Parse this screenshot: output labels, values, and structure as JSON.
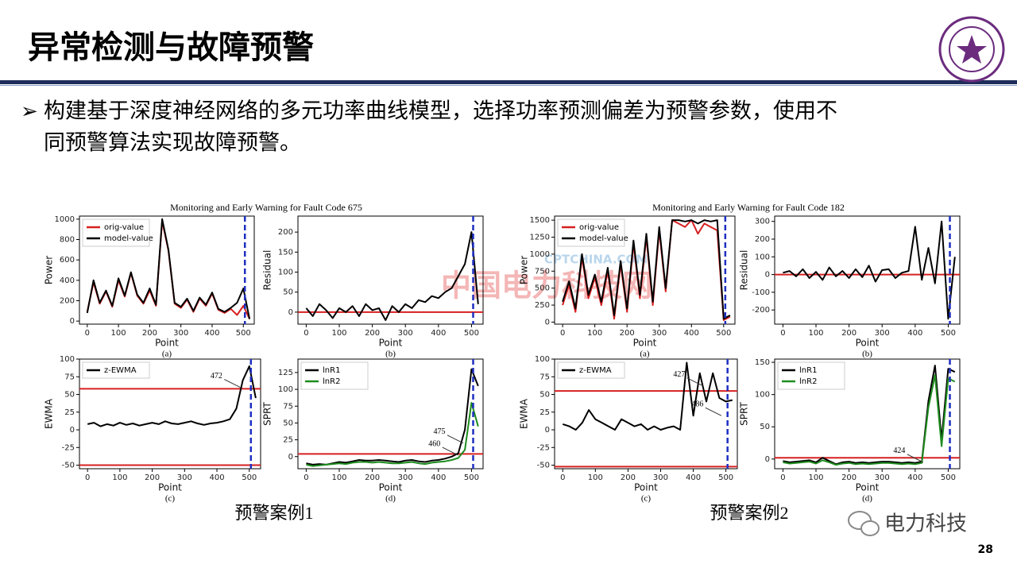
{
  "title": "异常检测与故障预警",
  "bullet": {
    "lines": [
      "构建基于深度神经网络的多元功率曲线模型，选择功率预测偏差为预警参数，使用不",
      "同预警算法实现故障预警。"
    ]
  },
  "figures": [
    {
      "title": "Monitoring and Early Warning for Fault Code 675",
      "caption": "预警案例1"
    },
    {
      "title": "Monitoring and Early Warning for Fault Code 182",
      "caption": "预警案例2"
    }
  ],
  "watermark": {
    "site": "CPTCHINA.COM",
    "name": "中国电力科技网"
  },
  "brand": "电力科技",
  "page_number": "28",
  "chart_data": [
    {
      "type": "line",
      "xlabel": "Point",
      "ylabel": "Power",
      "sublabel": "(a)",
      "legend": "upper left",
      "x": [
        0,
        20,
        40,
        60,
        80,
        100,
        120,
        140,
        160,
        180,
        200,
        220,
        240,
        260,
        280,
        300,
        320,
        340,
        360,
        380,
        400,
        420,
        440,
        460,
        480,
        500,
        520
      ],
      "xlim": [
        -25,
        535
      ],
      "ylim": [
        -30,
        1030
      ],
      "xticks": [
        0,
        100,
        200,
        300,
        400,
        500
      ],
      "yticks": [
        0,
        200,
        400,
        600,
        800,
        1000
      ],
      "alarm_x": 505,
      "thresholds": [],
      "series": [
        {
          "name": "orig-value",
          "color": "#d62020",
          "values": [
            90,
            380,
            170,
            290,
            140,
            400,
            240,
            470,
            250,
            170,
            300,
            150,
            980,
            690,
            170,
            130,
            210,
            90,
            220,
            150,
            270,
            110,
            80,
            120,
            60,
            150,
            20
          ]
        },
        {
          "name": "model-value",
          "color": "#000000",
          "values": [
            80,
            400,
            180,
            300,
            150,
            420,
            250,
            480,
            260,
            180,
            320,
            160,
            1000,
            700,
            180,
            140,
            220,
            100,
            230,
            160,
            280,
            120,
            90,
            130,
            180,
            320,
            20
          ]
        }
      ]
    },
    {
      "type": "line",
      "xlabel": "Point",
      "ylabel": "Residual",
      "sublabel": "(b)",
      "x": [
        0,
        20,
        40,
        60,
        80,
        100,
        120,
        140,
        160,
        180,
        200,
        220,
        240,
        260,
        280,
        300,
        320,
        340,
        360,
        380,
        400,
        420,
        440,
        460,
        480,
        500,
        520
      ],
      "xlim": [
        -25,
        535
      ],
      "ylim": [
        -30,
        240
      ],
      "xticks": [
        0,
        100,
        200,
        300,
        400,
        500
      ],
      "yticks": [
        0,
        50,
        100,
        150,
        200
      ],
      "alarm_x": 505,
      "thresholds": [
        0
      ],
      "series": [
        {
          "color": "#000000",
          "values": [
            10,
            -10,
            20,
            5,
            -15,
            10,
            0,
            15,
            -10,
            20,
            5,
            10,
            -20,
            15,
            0,
            20,
            10,
            30,
            25,
            40,
            35,
            50,
            60,
            90,
            120,
            200,
            20
          ]
        }
      ]
    },
    {
      "type": "line",
      "xlabel": "Point",
      "ylabel": "EWMA",
      "sublabel": "(c)",
      "legend": "upper left",
      "x": [
        0,
        20,
        40,
        60,
        80,
        100,
        120,
        140,
        160,
        180,
        200,
        220,
        240,
        260,
        280,
        300,
        320,
        340,
        360,
        380,
        400,
        420,
        440,
        460,
        480,
        500,
        520
      ],
      "xlim": [
        -25,
        535
      ],
      "ylim": [
        -55,
        100
      ],
      "xticks": [
        0,
        100,
        200,
        300,
        400,
        500
      ],
      "yticks": [
        -50,
        -25,
        0,
        25,
        50,
        75,
        100
      ],
      "alarm_x": 505,
      "thresholds": [
        58,
        -50
      ],
      "annotations": [
        {
          "label": "472",
          "x": 472,
          "y": 60
        }
      ],
      "series": [
        {
          "name": "z-EWMA",
          "color": "#000000",
          "values": [
            8,
            10,
            5,
            8,
            6,
            10,
            7,
            9,
            6,
            8,
            10,
            8,
            12,
            9,
            8,
            10,
            12,
            9,
            7,
            9,
            10,
            12,
            15,
            30,
            70,
            90,
            45
          ]
        }
      ]
    },
    {
      "type": "line",
      "xlabel": "Point",
      "ylabel": "SPRT",
      "sublabel": "(d)",
      "legend": "upper left",
      "x": [
        0,
        20,
        40,
        60,
        80,
        100,
        120,
        140,
        160,
        180,
        200,
        220,
        240,
        260,
        280,
        300,
        320,
        340,
        360,
        380,
        400,
        420,
        440,
        460,
        480,
        500,
        520
      ],
      "xlim": [
        -25,
        535
      ],
      "ylim": [
        -18,
        145
      ],
      "xticks": [
        0,
        100,
        200,
        300,
        400,
        500
      ],
      "yticks": [
        0,
        25,
        50,
        75,
        100,
        125
      ],
      "alarm_x": 505,
      "thresholds": [
        4
      ],
      "annotations": [
        {
          "label": "460",
          "x": 460,
          "y": 2
        },
        {
          "label": "475",
          "x": 475,
          "y": 20
        }
      ],
      "series": [
        {
          "name": "lnR1",
          "color": "#000000",
          "values": [
            -10,
            -12,
            -11,
            -12,
            -10,
            -8,
            -9,
            -7,
            -5,
            -6,
            -6,
            -5,
            -6,
            -7,
            -8,
            -6,
            -5,
            -7,
            -8,
            -6,
            -5,
            -3,
            0,
            5,
            40,
            130,
            105
          ]
        },
        {
          "name": "lnR2",
          "color": "#1e8c1e",
          "values": [
            -12,
            -14,
            -13,
            -12,
            -11,
            -10,
            -11,
            -9,
            -8,
            -8,
            -9,
            -8,
            -9,
            -10,
            -10,
            -9,
            -8,
            -10,
            -11,
            -9,
            -8,
            -7,
            -5,
            -2,
            10,
            80,
            45
          ]
        }
      ]
    },
    {
      "type": "line",
      "xlabel": "Point",
      "ylabel": "Power",
      "sublabel": "(a)",
      "legend": "upper left",
      "x": [
        0,
        20,
        40,
        60,
        80,
        100,
        120,
        140,
        160,
        180,
        200,
        220,
        240,
        260,
        280,
        300,
        320,
        340,
        360,
        380,
        400,
        420,
        440,
        460,
        480,
        500,
        520
      ],
      "xlim": [
        -25,
        535
      ],
      "ylim": [
        -30,
        1560
      ],
      "xticks": [
        0,
        100,
        200,
        300,
        400,
        500
      ],
      "yticks": [
        0,
        250,
        500,
        750,
        1000,
        1250,
        1500
      ],
      "alarm_x": 505,
      "thresholds": [],
      "series": [
        {
          "name": "orig-value",
          "color": "#d62020",
          "values": [
            250,
            550,
            150,
            950,
            350,
            650,
            250,
            750,
            50,
            850,
            150,
            1150,
            350,
            1250,
            250,
            1350,
            450,
            1500,
            1450,
            1400,
            1500,
            1300,
            1450,
            1400,
            1350,
            30,
            80
          ]
        },
        {
          "name": "model-value",
          "color": "#000000",
          "values": [
            300,
            600,
            200,
            1000,
            400,
            700,
            300,
            800,
            100,
            900,
            200,
            1200,
            400,
            1300,
            300,
            1400,
            500,
            1500,
            1500,
            1480,
            1500,
            1450,
            1500,
            1480,
            1500,
            50,
            100
          ]
        }
      ]
    },
    {
      "type": "line",
      "xlabel": "Point",
      "ylabel": "Residual",
      "sublabel": "(b)",
      "x": [
        0,
        20,
        40,
        60,
        80,
        100,
        120,
        140,
        160,
        180,
        200,
        220,
        240,
        260,
        280,
        300,
        320,
        340,
        360,
        380,
        400,
        420,
        440,
        460,
        480,
        500,
        520
      ],
      "xlim": [
        -25,
        535
      ],
      "ylim": [
        -280,
        330
      ],
      "xticks": [
        0,
        100,
        200,
        300,
        400,
        500
      ],
      "yticks": [
        -200,
        -100,
        0,
        100,
        200,
        300
      ],
      "alarm_x": 505,
      "thresholds": [
        0
      ],
      "series": [
        {
          "color": "#000000",
          "values": [
            10,
            20,
            -10,
            30,
            -20,
            15,
            -30,
            40,
            -10,
            20,
            -20,
            30,
            -15,
            50,
            -40,
            25,
            30,
            -20,
            10,
            20,
            270,
            -30,
            150,
            -50,
            300,
            -250,
            100
          ]
        }
      ]
    },
    {
      "type": "line",
      "xlabel": "Point",
      "ylabel": "EWMA",
      "sublabel": "(c)",
      "legend": "upper left",
      "x": [
        0,
        20,
        40,
        60,
        80,
        100,
        120,
        140,
        160,
        180,
        200,
        220,
        240,
        260,
        280,
        300,
        320,
        340,
        360,
        380,
        400,
        420,
        440,
        460,
        480,
        500,
        520
      ],
      "xlim": [
        -25,
        535
      ],
      "ylim": [
        -55,
        100
      ],
      "xticks": [
        0,
        100,
        200,
        300,
        400,
        500
      ],
      "yticks": [
        -50,
        -25,
        0,
        25,
        50,
        75,
        100
      ],
      "alarm_x": 505,
      "thresholds": [
        55,
        -52
      ],
      "annotations": [
        {
          "label": "427",
          "x": 430,
          "y": 62
        },
        {
          "label": "486",
          "x": 486,
          "y": 20
        }
      ],
      "series": [
        {
          "name": "z-EWMA",
          "color": "#000000",
          "values": [
            8,
            5,
            0,
            10,
            28,
            15,
            10,
            5,
            0,
            15,
            10,
            5,
            8,
            0,
            5,
            0,
            3,
            5,
            0,
            95,
            20,
            80,
            40,
            80,
            45,
            40,
            42
          ]
        }
      ]
    },
    {
      "type": "line",
      "xlabel": "Point",
      "ylabel": "SPRT",
      "sublabel": "(d)",
      "legend": "upper left",
      "x": [
        0,
        20,
        40,
        60,
        80,
        100,
        120,
        140,
        160,
        180,
        200,
        220,
        240,
        260,
        280,
        300,
        320,
        340,
        360,
        380,
        400,
        420,
        440,
        460,
        480,
        500,
        520
      ],
      "xlim": [
        -25,
        535
      ],
      "ylim": [
        -15,
        155
      ],
      "xticks": [
        0,
        100,
        200,
        300,
        400,
        500
      ],
      "yticks": [
        0,
        50,
        100,
        150
      ],
      "alarm_x": 505,
      "thresholds": [
        2
      ],
      "annotations": [
        {
          "label": "424",
          "x": 424,
          "y": -5
        }
      ],
      "series": [
        {
          "name": "lnR1",
          "color": "#000000",
          "values": [
            -3,
            -5,
            -4,
            -3,
            -2,
            -5,
            2,
            -3,
            -8,
            -5,
            -4,
            -6,
            -5,
            -6,
            -5,
            -4,
            -4,
            -5,
            -6,
            -5,
            -6,
            -4,
            90,
            145,
            30,
            140,
            135
          ]
        },
        {
          "name": "lnR2",
          "color": "#1e8c1e",
          "values": [
            -5,
            -7,
            -6,
            -5,
            -4,
            -7,
            -2,
            -5,
            -9,
            -7,
            -6,
            -8,
            -7,
            -8,
            -7,
            -6,
            -6,
            -7,
            -8,
            -7,
            -8,
            -6,
            80,
            130,
            20,
            125,
            120
          ]
        }
      ]
    }
  ]
}
